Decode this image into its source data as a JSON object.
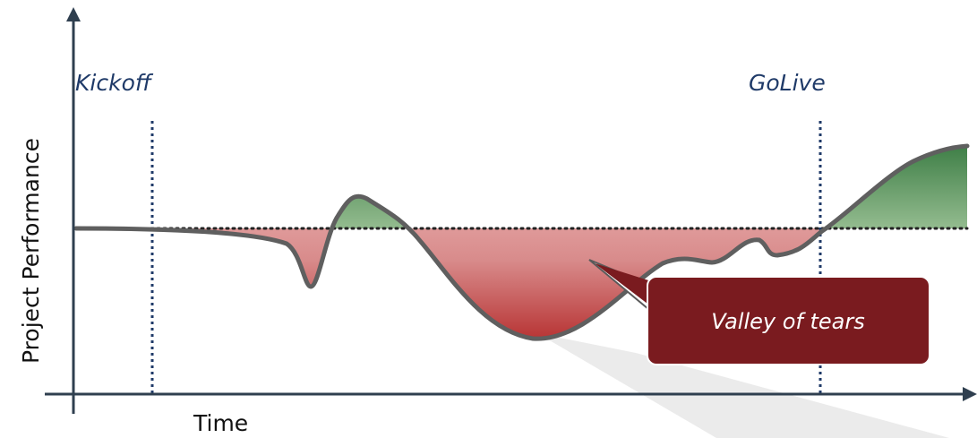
{
  "diagram": {
    "milestones": {
      "kickoff": "Kickoff",
      "golive": "GoLive"
    },
    "axes": {
      "x_label": "Time",
      "y_label": "Project Performance"
    },
    "callout": {
      "text": "Valley of tears"
    },
    "colors": {
      "axis": "#2f3f4f",
      "milestone_line": "#1f3a68",
      "curve": "#5f5f5f",
      "callout_fill": "#7a1b1f",
      "gain_fill": "#4d8b4d",
      "loss_fill": "#b83a3a"
    }
  }
}
